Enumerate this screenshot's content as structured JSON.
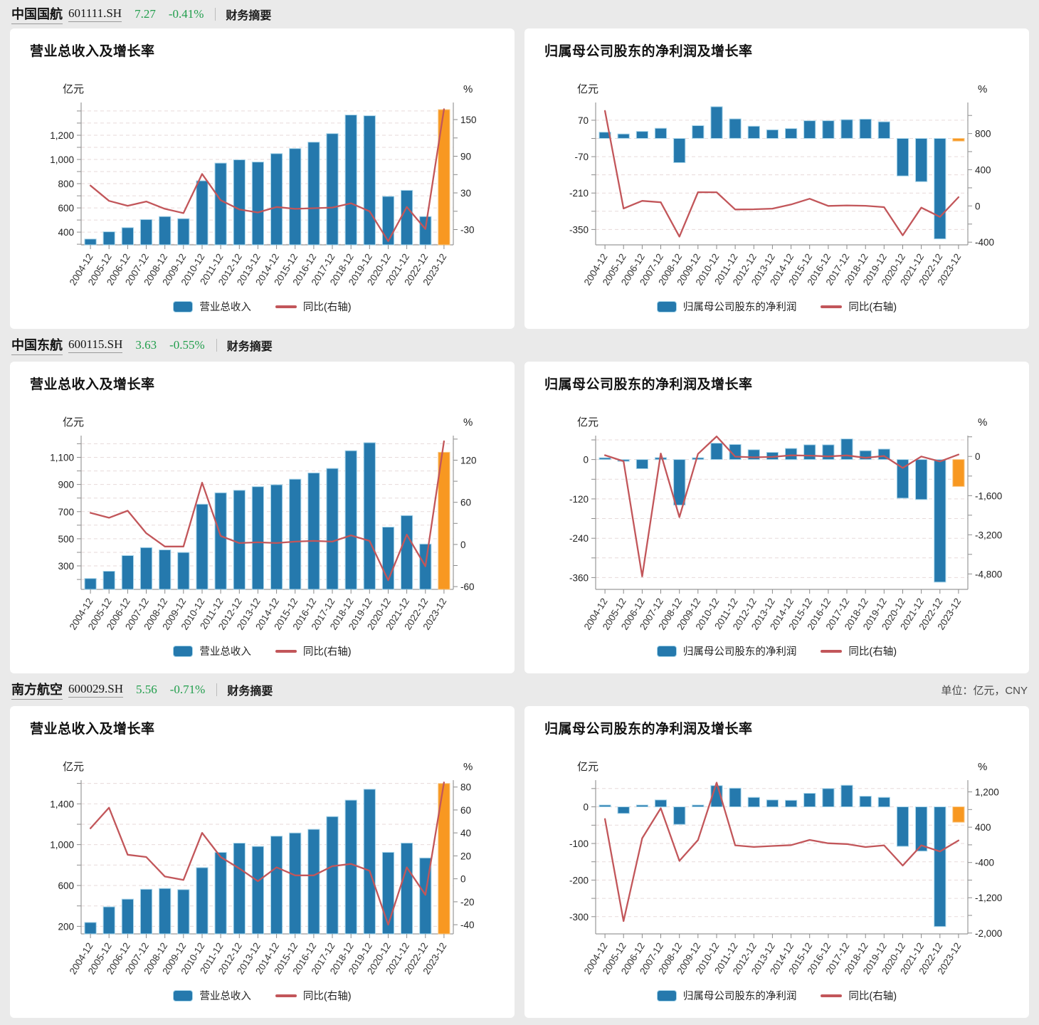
{
  "page": {
    "unit_note": "单位：亿元，CNY"
  },
  "colors": {
    "bar": "#2579ad",
    "bar_stroke": "#a9d6ea",
    "bar_highlight": "#f89821",
    "bar_highlight_stroke": "#f9c887",
    "line": "#c2565a",
    "positive_green": "#219e4c",
    "grid": "#e7dada"
  },
  "companies": [
    {
      "name": "中国国航",
      "code": "601111.SH",
      "price": "7.27",
      "change": "-0.41%",
      "summary_link": "财务摘要",
      "charts": [
        {
          "title": "营业总收入及增长率",
          "legend_bar": "营业总收入",
          "legend_line": "同比(右轴)",
          "chart_data": {
            "type": "bar+line",
            "categories": [
              "2004-12",
              "2005-12",
              "2006-12",
              "2007-12",
              "2008-12",
              "2009-12",
              "2010-12",
              "2011-12",
              "2012-12",
              "2013-12",
              "2014-12",
              "2015-12",
              "2016-12",
              "2017-12",
              "2018-12",
              "2019-12",
              "2020-12",
              "2021-12",
              "2022-12",
              "2023-12"
            ],
            "series": [
              {
                "name": "营业总收入",
                "kind": "bar",
                "axis": "left",
                "highlight_last": true,
                "values": [
                  343,
                  403,
                  437,
                  504,
                  529,
                  511,
                  824,
                  970,
                  997,
                  979,
                  1048,
                  1090,
                  1143,
                  1213,
                  1367,
                  1361,
                  695,
                  745,
                  529,
                  1411
                ]
              },
              {
                "name": "同比(右轴)",
                "kind": "line",
                "axis": "right",
                "values": [
                  42,
                  17,
                  9,
                  16,
                  4,
                  -3,
                  61,
                  18,
                  3,
                  -2,
                  7,
                  4,
                  5,
                  6,
                  13,
                  0,
                  -49,
                  7,
                  -29,
                  167
                ]
              }
            ],
            "left_axis": {
              "unit": "亿元",
              "range": [
                295,
                1470
              ],
              "labeled_ticks": [
                400,
                600,
                800,
                1000,
                1200
              ],
              "grid_interval": 100
            },
            "right_axis": {
              "unit": "%",
              "range": [
                -55,
                178
              ],
              "labeled_ticks": [
                150,
                90,
                30,
                -30
              ],
              "tick_interval": 30
            }
          }
        },
        {
          "title": "归属母公司股东的净利润及增长率",
          "legend_bar": "归属母公司股东的净利润",
          "legend_line": "同比(右轴)",
          "chart_data": {
            "type": "bar+line",
            "categories": [
              "2004-12",
              "2005-12",
              "2006-12",
              "2007-12",
              "2008-12",
              "2009-12",
              "2010-12",
              "2011-12",
              "2012-12",
              "2013-12",
              "2014-12",
              "2015-12",
              "2016-12",
              "2017-12",
              "2018-12",
              "2019-12",
              "2020-12",
              "2021-12",
              "2022-12",
              "2023-12"
            ],
            "series": [
              {
                "name": "归属母公司股东的净利润",
                "kind": "bar",
                "axis": "left",
                "highlight_last": true,
                "values": [
                  24,
                  17,
                  27,
                  39,
                  -93,
                  49,
                  122,
                  75,
                  47,
                  33,
                  38,
                  68,
                  68,
                  72,
                  74,
                  64,
                  -144,
                  -166,
                  -386,
                  -10
                ]
              },
              {
                "name": "同比(右轴)",
                "kind": "line",
                "axis": "right",
                "values": [
                  1050,
                  -28,
                  56,
                  40,
                  -339,
                  152,
                  151,
                  -39,
                  -37,
                  -30,
                  16,
                  80,
                  0,
                  6,
                  2,
                  -13,
                  -325,
                  -19,
                  -121,
                  97
                ]
              }
            ],
            "left_axis": {
              "unit": "亿元",
              "range": [
                -409,
                138
              ],
              "labeled_ticks": [
                70,
                -70,
                -210,
                -350
              ],
              "grid_interval": 70
            },
            "right_axis": {
              "unit": "%",
              "range": [
                -430,
                1143
              ],
              "labeled_ticks": [
                800,
                400,
                0,
                -400
              ],
              "tick_interval": 200
            }
          }
        }
      ]
    },
    {
      "name": "中国东航",
      "code": "600115.SH",
      "price": "3.63",
      "change": "-0.55%",
      "summary_link": "财务摘要",
      "charts": [
        {
          "title": "营业总收入及增长率",
          "legend_bar": "营业总收入",
          "legend_line": "同比(右轴)",
          "chart_data": {
            "type": "bar+line",
            "categories": [
              "2004-12",
              "2005-12",
              "2006-12",
              "2007-12",
              "2008-12",
              "2009-12",
              "2010-12",
              "2011-12",
              "2012-12",
              "2013-12",
              "2014-12",
              "2015-12",
              "2016-12",
              "2017-12",
              "2018-12",
              "2019-12",
              "2020-12",
              "2021-12",
              "2022-12",
              "2023-12"
            ],
            "series": [
              {
                "name": "营业总收入",
                "kind": "bar",
                "axis": "left",
                "highlight_last": true,
                "values": [
                  207,
                  261,
                  376,
                  435,
                  418,
                  399,
                  755,
                  839,
                  857,
                  884,
                  898,
                  939,
                  985,
                  1018,
                  1149,
                  1208,
                  586,
                  671,
                  461,
                  1137
                ]
              },
              {
                "name": "同比(右轴)",
                "kind": "line",
                "axis": "right",
                "values": [
                  45,
                  38,
                  48,
                  16,
                  -3,
                  -3,
                  88,
                  12,
                  2,
                  3,
                  2,
                  4,
                  5,
                  4,
                  13,
                  5,
                  -51,
                  14,
                  -31,
                  147
                ]
              }
            ],
            "left_axis": {
              "unit": "亿元",
              "range": [
                127,
                1260
              ],
              "labeled_ticks": [
                300,
                500,
                700,
                900,
                1100
              ],
              "grid_interval": 100
            },
            "right_axis": {
              "unit": "%",
              "range": [
                -64,
                155
              ],
              "labeled_ticks": [
                120,
                60,
                0,
                -60
              ],
              "tick_interval": 30
            }
          }
        },
        {
          "title": "归属母公司股东的净利润及增长率",
          "legend_bar": "归属母公司股东的净利润",
          "legend_line": "同比(右轴)",
          "chart_data": {
            "type": "bar+line",
            "categories": [
              "2004-12",
              "2005-12",
              "2006-12",
              "2007-12",
              "2008-12",
              "2009-12",
              "2010-12",
              "2011-12",
              "2012-12",
              "2013-12",
              "2014-12",
              "2015-12",
              "2016-12",
              "2017-12",
              "2018-12",
              "2019-12",
              "2020-12",
              "2021-12",
              "2022-12",
              "2023-12"
            ],
            "series": [
              {
                "name": "归属母公司股东的净利润",
                "kind": "bar",
                "axis": "left",
                "highlight_last": true,
                "values": [
                  5,
                  -5,
                  -28,
                  6,
                  -139,
                  5,
                  50,
                  46,
                  30,
                  22,
                  34,
                  45,
                  45,
                  63,
                  27,
                  32,
                  -118,
                  -122,
                  -374,
                  -82
                ]
              },
              {
                "name": "同比(右轴)",
                "kind": "line",
                "axis": "right",
                "values": [
                  50,
                  -197,
                  -4900,
                  120,
                  -2478,
                  104,
                  818,
                  -8,
                  -36,
                  -19,
                  44,
                  32,
                  0,
                  41,
                  -57,
                  18,
                  -470,
                  -3,
                  -206,
                  78
                ]
              }
            ],
            "left_axis": {
              "unit": "亿元",
              "range": [
                -396,
                73
              ],
              "labeled_ticks": [
                0,
                -120,
                -240,
                -360
              ],
              "grid_interval": 60
            },
            "right_axis": {
              "unit": "%",
              "range": [
                -5430,
                850
              ],
              "labeled_ticks": [
                0,
                -1600,
                -3200,
                -4800
              ],
              "tick_interval": 800
            }
          }
        }
      ]
    },
    {
      "name": "南方航空",
      "code": "600029.SH",
      "price": "5.56",
      "change": "-0.71%",
      "summary_link": "财务摘要",
      "charts": [
        {
          "title": "营业总收入及增长率",
          "legend_bar": "营业总收入",
          "legend_line": "同比(右轴)",
          "chart_data": {
            "type": "bar+line",
            "categories": [
              "2004-12",
              "2005-12",
              "2006-12",
              "2007-12",
              "2008-12",
              "2009-12",
              "2010-12",
              "2011-12",
              "2012-12",
              "2013-12",
              "2014-12",
              "2015-12",
              "2016-12",
              "2017-12",
              "2018-12",
              "2019-12",
              "2020-12",
              "2021-12",
              "2022-12",
              "2023-12"
            ],
            "series": [
              {
                "name": "营业总收入",
                "kind": "bar",
                "axis": "left",
                "highlight_last": true,
                "values": [
                  238,
                  391,
                  466,
                  563,
                  571,
                  560,
                  775,
                  924,
                  1015,
                  983,
                  1083,
                  1115,
                  1150,
                  1275,
                  1436,
                  1543,
                  925,
                  1016,
                  870,
                  1599
                ]
              },
              {
                "name": "同比(右轴)",
                "kind": "line",
                "axis": "right",
                "values": [
                  44,
                  62,
                  21,
                  19,
                  2,
                  -1,
                  40,
                  19,
                  9,
                  -2,
                  10,
                  3,
                  3,
                  11,
                  13,
                  7,
                  -40,
                  10,
                  -14,
                  84
                ]
              }
            ],
            "left_axis": {
              "unit": "亿元",
              "range": [
                126,
                1632
              ],
              "labeled_ticks": [
                200,
                600,
                1000,
                1400
              ],
              "grid_interval": 200
            },
            "right_axis": {
              "unit": "%",
              "range": [
                -48,
                86
              ],
              "labeled_ticks": [
                80,
                60,
                40,
                20,
                0,
                -20,
                -40
              ],
              "tick_interval": 20
            }
          }
        },
        {
          "title": "归属母公司股东的净利润及增长率",
          "legend_bar": "归属母公司股东的净利润",
          "legend_line": "同比(右轴)",
          "chart_data": {
            "type": "bar+line",
            "categories": [
              "2004-12",
              "2005-12",
              "2006-12",
              "2007-12",
              "2008-12",
              "2009-12",
              "2010-12",
              "2011-12",
              "2012-12",
              "2013-12",
              "2014-12",
              "2015-12",
              "2016-12",
              "2017-12",
              "2018-12",
              "2019-12",
              "2020-12",
              "2021-12",
              "2022-12",
              "2023-12"
            ],
            "series": [
              {
                "name": "归属母公司股东的净利润",
                "kind": "bar",
                "axis": "left",
                "highlight_last": true,
                "values": [
                  1,
                  -18,
                  2,
                  19,
                  -48,
                  3,
                  58,
                  51,
                  26,
                  19,
                  18,
                  37,
                  50,
                  59,
                  29,
                  26,
                  -108,
                  -121,
                  -327,
                  -42
                ]
              },
              {
                "name": "同比(右轴)",
                "kind": "line",
                "axis": "right",
                "values": [
                  585,
                  -1730,
                  150,
                  830,
                  -363,
                  107,
                  1410,
                  -12,
                  -49,
                  -27,
                  -7,
                  111,
                  35,
                  17,
                  -50,
                  -11,
                  -470,
                  -12,
                  -150,
                  100
                ]
              }
            ],
            "left_axis": {
              "unit": "亿元",
              "range": [
                -347,
                73
              ],
              "labeled_ticks": [
                0,
                -100,
                -200,
                -300
              ],
              "grid_interval": 50
            },
            "right_axis": {
              "unit": "%",
              "range": [
                -2020,
                1467
              ],
              "labeled_ticks": [
                1200,
                400,
                -400,
                -1200,
                -2000
              ],
              "tick_interval": 400
            }
          }
        }
      ]
    }
  ]
}
